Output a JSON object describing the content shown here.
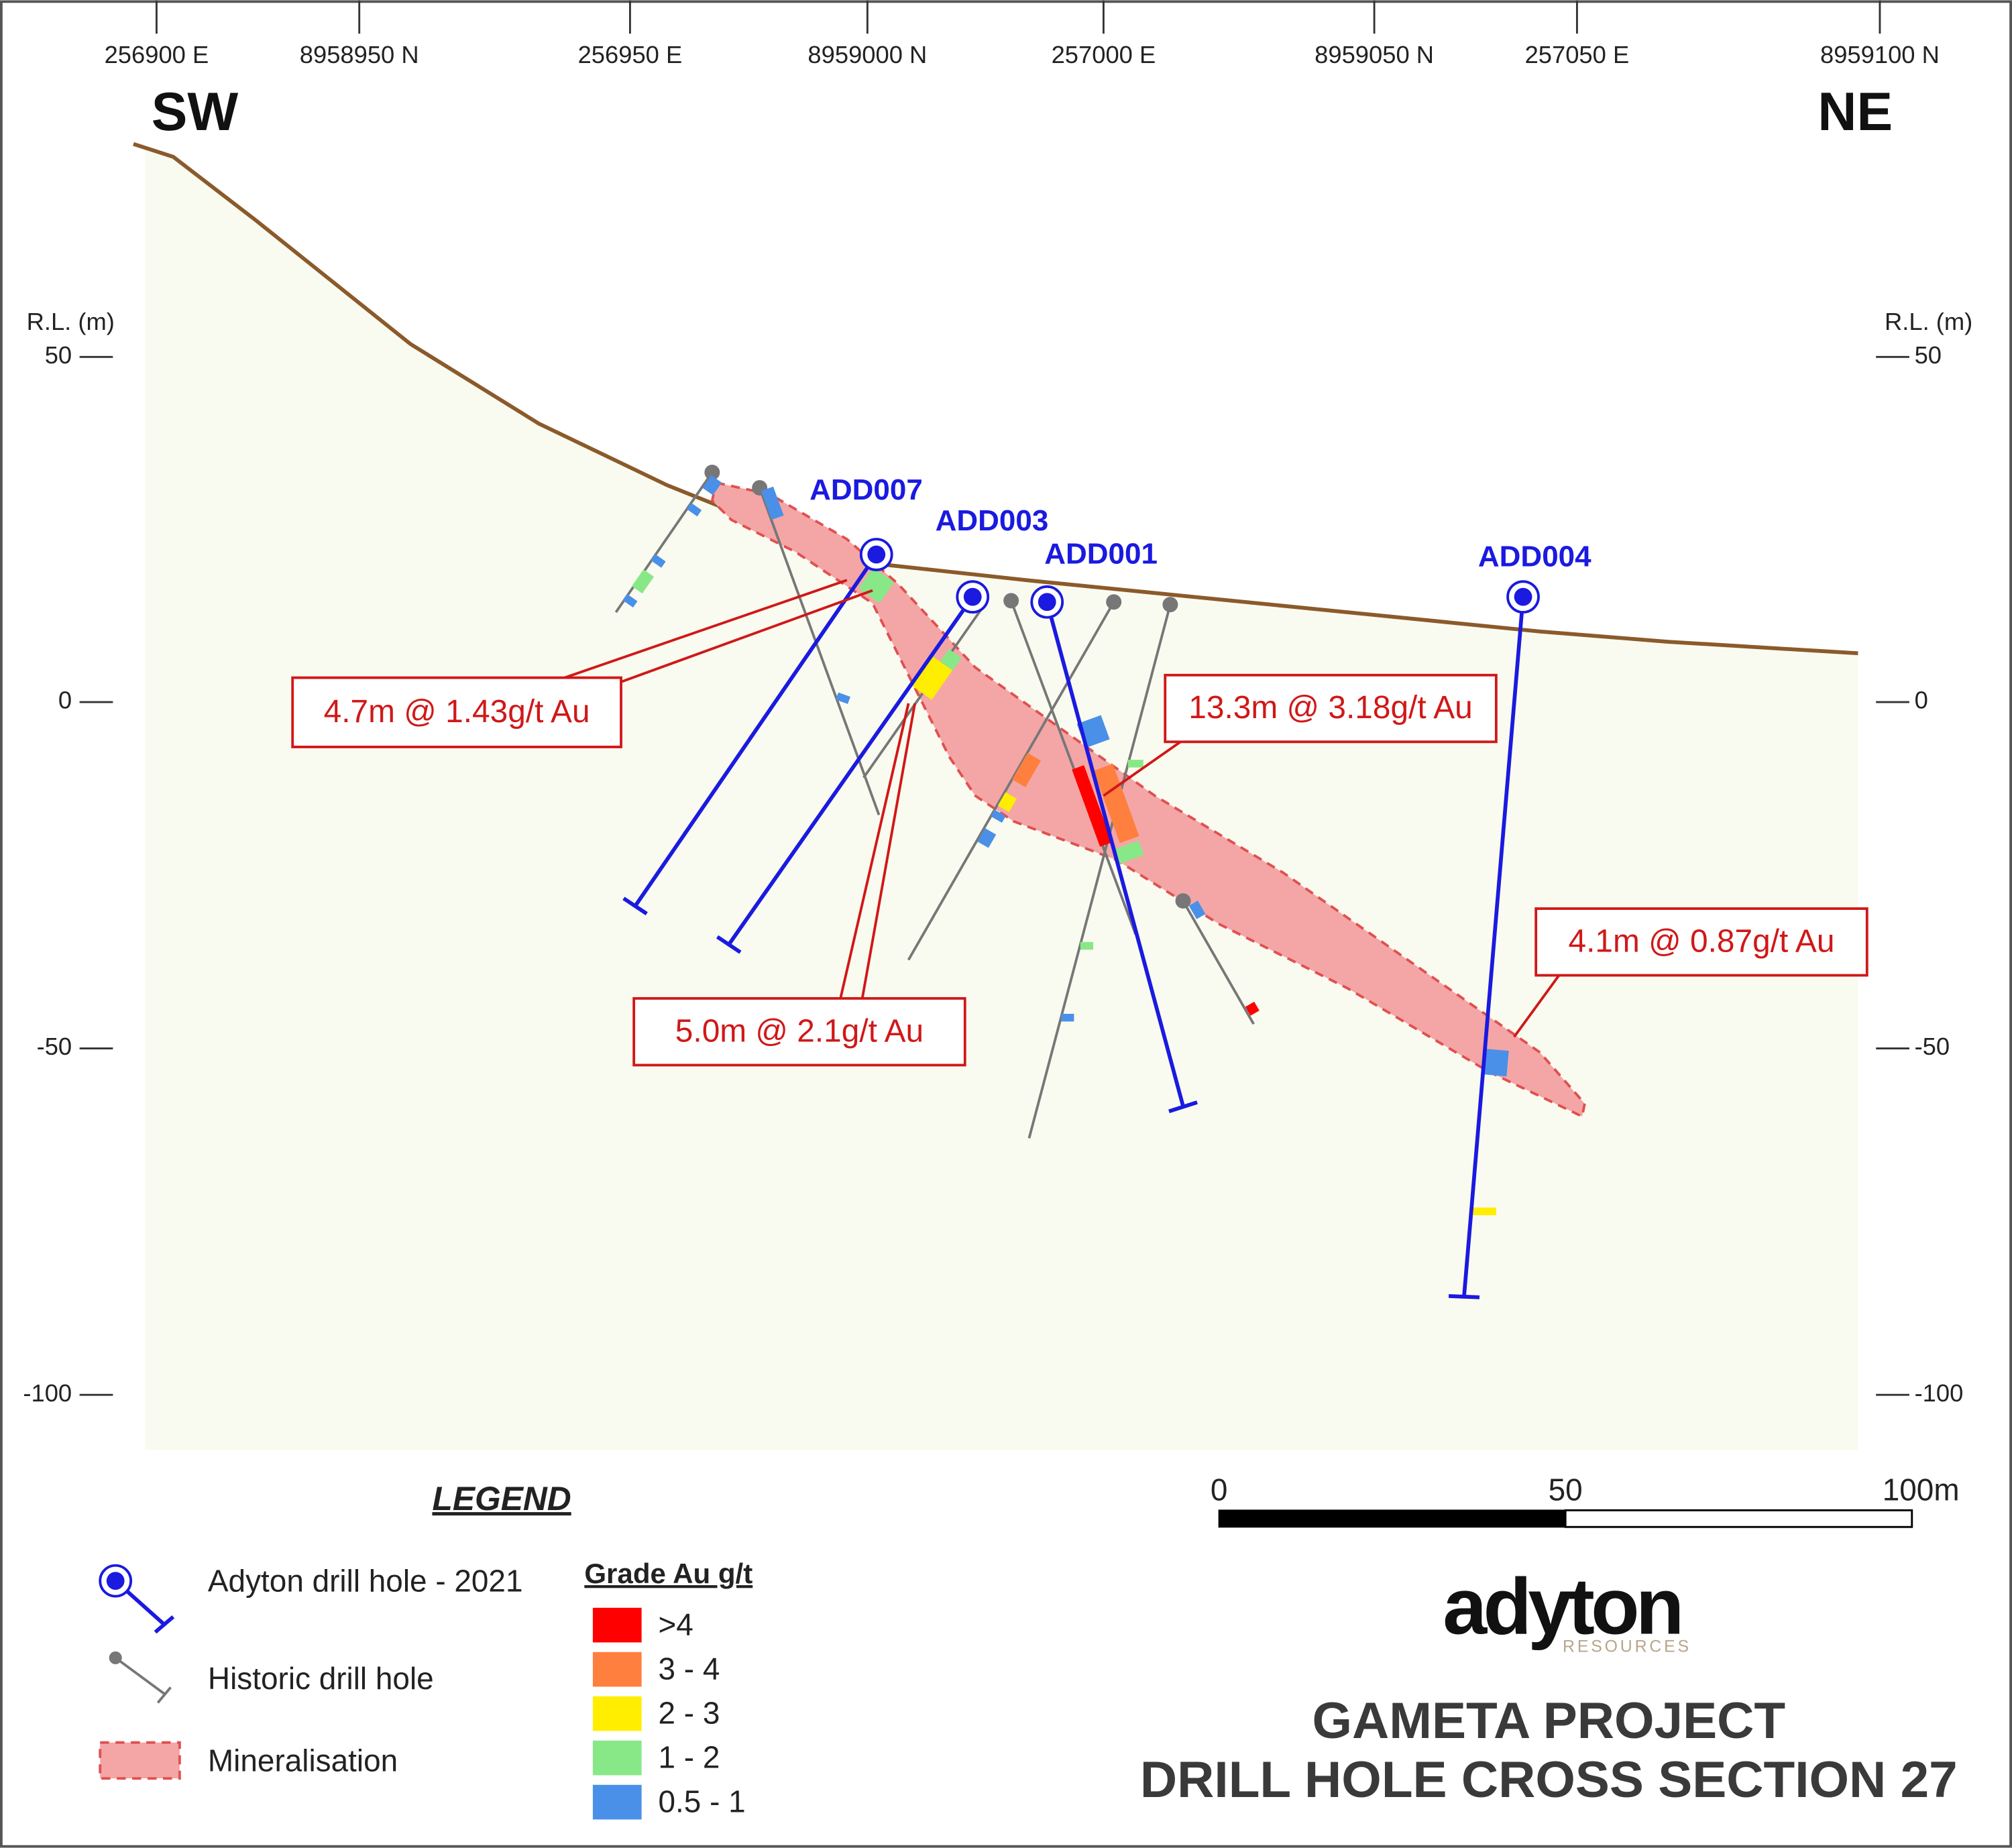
{
  "header": {
    "coords": [
      "256900 E",
      "8958950 N",
      "256950 E",
      "8959000 N",
      "257000 E",
      "8959050 N",
      "257050 E",
      "8959100 N"
    ],
    "left_direction": "SW",
    "right_direction": "NE"
  },
  "axes": {
    "left_label": "R.L. (m)",
    "right_label": "R.L. (m)",
    "levels": [
      "50",
      "0",
      "-50",
      "-100"
    ]
  },
  "holes": [
    "ADD007",
    "ADD003",
    "ADD001",
    "ADD004"
  ],
  "intercepts": [
    "4.7m @ 1.43g/t Au",
    "5.0m @ 2.1g/t Au",
    "13.3m @ 3.18g/t Au",
    "4.1m @ 0.87g/t Au"
  ],
  "legend": {
    "title": "LEGEND",
    "items": [
      "Adyton drill hole - 2021",
      "Historic drill hole",
      "Mineralisation"
    ],
    "grade_title": "Grade Au g/t",
    "grades": [
      {
        "label": ">4",
        "color": "#ff0000"
      },
      {
        "label": "3 - 4",
        "color": "#ff7f3f"
      },
      {
        "label": "2 - 3",
        "color": "#ffee00"
      },
      {
        "label": "1 - 2",
        "color": "#88e888"
      },
      {
        "label": "0.5 - 1",
        "color": "#4a90e8"
      }
    ]
  },
  "scale_bar": {
    "labels": [
      "0",
      "50",
      "100m"
    ]
  },
  "logo": {
    "name": "adyton",
    "subtitle": "RESOURCES"
  },
  "title": {
    "line1": "GAMETA PROJECT",
    "line2": "DRILL HOLE CROSS SECTION 27"
  }
}
